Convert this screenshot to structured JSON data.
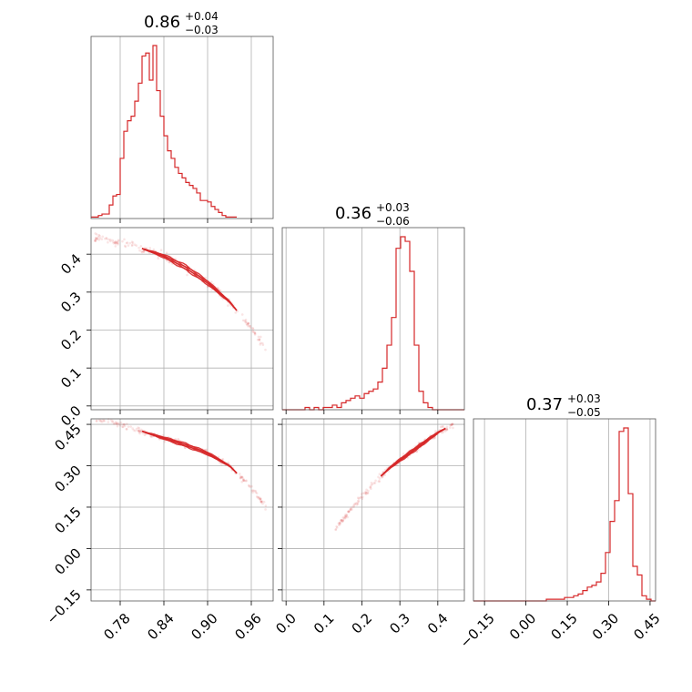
{
  "colors": {
    "series": "#d62728",
    "grid": "#b0b0b0",
    "frame": "#555555"
  },
  "chart_data": {
    "type": "corner",
    "grid": true,
    "parameters": [
      {
        "range": [
          0.74,
          0.99
        ],
        "ticks": [
          "0.78",
          "0.84",
          "0.90",
          "0.96"
        ],
        "tick_values": [
          0.78,
          0.84,
          0.9,
          0.96
        ],
        "title": {
          "median": "0.86",
          "plus": "+0.04",
          "minus": "−0.03"
        }
      },
      {
        "range": [
          -0.01,
          0.47
        ],
        "ticks": [
          "0.0",
          "0.1",
          "0.2",
          "0.3",
          "0.4"
        ],
        "tick_values": [
          0.0,
          0.1,
          0.2,
          0.3,
          0.4
        ],
        "title": {
          "median": "0.36",
          "plus": "+0.03",
          "minus": "−0.06"
        }
      },
      {
        "range": [
          -0.19,
          0.47
        ],
        "ticks": [
          "−0.15",
          "0.00",
          "0.15",
          "0.30",
          "0.45"
        ],
        "tick_values": [
          -0.15,
          0.0,
          0.15,
          0.3,
          0.45
        ],
        "title": {
          "median": "0.37",
          "plus": "+0.03",
          "minus": "−0.05"
        }
      }
    ],
    "histograms": [
      {
        "param": 0,
        "bin_start": 0.74,
        "bin_width": 0.005,
        "counts": [
          1,
          1,
          2,
          3,
          3,
          9,
          15,
          16,
          40,
          58,
          65,
          68,
          78,
          90,
          108,
          110,
          92,
          115,
          85,
          68,
          55,
          45,
          40,
          34,
          30,
          27,
          24,
          22,
          20,
          17,
          12,
          12,
          11,
          8,
          6,
          4,
          2,
          1,
          1,
          1
        ]
      },
      {
        "param": 1,
        "bin_start": -0.01,
        "bin_width": 0.012,
        "counts": [
          0,
          0,
          0,
          0,
          0,
          1,
          0,
          1,
          0,
          1,
          1,
          2,
          1,
          3,
          4,
          5,
          6,
          5,
          7,
          8,
          9,
          12,
          18,
          28,
          40,
          70,
          75,
          73,
          60,
          28,
          8,
          3,
          1,
          0,
          0,
          0,
          0,
          0,
          0,
          0
        ]
      },
      {
        "param": 2,
        "bin_start": -0.19,
        "bin_width": 0.0165,
        "counts": [
          0,
          0,
          0,
          0,
          0,
          0,
          0,
          0,
          0,
          0,
          0,
          0,
          0,
          0,
          0,
          0,
          1,
          1,
          1,
          1,
          2,
          2,
          3,
          4,
          6,
          8,
          9,
          11,
          16,
          28,
          46,
          58,
          98,
          100,
          62,
          20,
          15,
          3,
          1,
          0
        ]
      }
    ],
    "scatter_pairs": [
      {
        "x_param": 0,
        "y_param": 1,
        "curve": [
          [
            0.745,
            0.445
          ],
          [
            0.78,
            0.43
          ],
          [
            0.81,
            0.415
          ],
          [
            0.84,
            0.395
          ],
          [
            0.87,
            0.365
          ],
          [
            0.9,
            0.325
          ],
          [
            0.93,
            0.275
          ],
          [
            0.96,
            0.205
          ],
          [
            0.98,
            0.15
          ]
        ],
        "core_range": [
          0.81,
          0.94
        ]
      },
      {
        "x_param": 0,
        "y_param": 2,
        "curve": [
          [
            0.745,
            0.47
          ],
          [
            0.78,
            0.45
          ],
          [
            0.81,
            0.425
          ],
          [
            0.84,
            0.4
          ],
          [
            0.87,
            0.375
          ],
          [
            0.9,
            0.345
          ],
          [
            0.93,
            0.3
          ],
          [
            0.96,
            0.22
          ],
          [
            0.98,
            0.15
          ]
        ],
        "core_range": [
          0.81,
          0.94
        ]
      },
      {
        "x_param": 1,
        "y_param": 2,
        "curve": [
          [
            0.13,
            0.07
          ],
          [
            0.17,
            0.14
          ],
          [
            0.2,
            0.19
          ],
          [
            0.24,
            0.25
          ],
          [
            0.28,
            0.3
          ],
          [
            0.32,
            0.34
          ],
          [
            0.36,
            0.38
          ],
          [
            0.4,
            0.42
          ],
          [
            0.44,
            0.45
          ]
        ],
        "core_range": [
          0.25,
          0.42
        ]
      }
    ]
  }
}
